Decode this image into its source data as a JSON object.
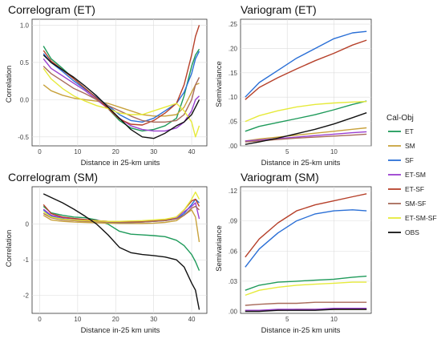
{
  "legend": {
    "title": "Cal-Obj",
    "items": [
      {
        "name": "ET",
        "color": "#1e9a5a"
      },
      {
        "name": "SM",
        "color": "#c8a23c"
      },
      {
        "name": "SF",
        "color": "#2a6fd6"
      },
      {
        "name": "ET-SM",
        "color": "#9a3fd0"
      },
      {
        "name": "ET-SF",
        "color": "#b6402a"
      },
      {
        "name": "SM-SF",
        "color": "#a86a5a"
      },
      {
        "name": "ET-SM-SF",
        "color": "#e6ea3a"
      },
      {
        "name": "OBS",
        "color": "#111111"
      }
    ]
  },
  "chart_data": [
    {
      "type": "line",
      "title": "Correlogram (ET)",
      "xlabel": "Distance in 25-km units",
      "ylabel": "Correlation",
      "xlim": [
        -2,
        44
      ],
      "ylim": [
        -0.62,
        1.08
      ],
      "xticks": [
        0,
        10,
        20,
        30,
        40
      ],
      "yticks": [
        1.0,
        0.5,
        0.0,
        -0.5
      ],
      "ytick_labels": [
        "1.0",
        "0.5",
        "0.0",
        "-0.5"
      ],
      "x": [
        1,
        3,
        6,
        9,
        12,
        15,
        18,
        21,
        24,
        27,
        30,
        33,
        36,
        38,
        40,
        41,
        42
      ],
      "series": [
        {
          "name": "ET",
          "values": [
            0.72,
            0.55,
            0.42,
            0.28,
            0.15,
            0.02,
            -0.12,
            -0.28,
            -0.38,
            -0.42,
            -0.4,
            -0.35,
            -0.25,
            0.05,
            0.45,
            0.6,
            0.68
          ]
        },
        {
          "name": "SM",
          "values": [
            0.2,
            0.12,
            0.06,
            0.02,
            0.0,
            -0.02,
            -0.05,
            -0.1,
            -0.15,
            -0.2,
            -0.22,
            -0.22,
            -0.2,
            -0.1,
            0.1,
            0.2,
            0.22
          ]
        },
        {
          "name": "SF",
          "values": [
            0.62,
            0.5,
            0.38,
            0.25,
            0.14,
            0.03,
            -0.08,
            -0.2,
            -0.28,
            -0.3,
            -0.25,
            -0.15,
            -0.05,
            0.1,
            0.35,
            0.55,
            0.65
          ]
        },
        {
          "name": "ET-SM",
          "values": [
            0.55,
            0.42,
            0.32,
            0.22,
            0.12,
            0.0,
            -0.12,
            -0.25,
            -0.35,
            -0.4,
            -0.42,
            -0.42,
            -0.38,
            -0.3,
            -0.15,
            0.0,
            0.05
          ]
        },
        {
          "name": "ET-SF",
          "values": [
            0.66,
            0.52,
            0.4,
            0.28,
            0.15,
            0.02,
            -0.12,
            -0.26,
            -0.33,
            -0.34,
            -0.28,
            -0.18,
            -0.05,
            0.2,
            0.6,
            0.85,
            1.0
          ]
        },
        {
          "name": "SM-SF",
          "values": [
            0.45,
            0.35,
            0.25,
            0.15,
            0.08,
            0.0,
            -0.08,
            -0.15,
            -0.22,
            -0.28,
            -0.3,
            -0.3,
            -0.28,
            -0.2,
            0.0,
            0.2,
            0.3
          ]
        },
        {
          "name": "ET-SM-SF",
          "values": [
            0.42,
            0.28,
            0.15,
            0.05,
            -0.02,
            -0.08,
            -0.12,
            -0.18,
            -0.2,
            -0.2,
            -0.15,
            -0.1,
            -0.05,
            -0.15,
            -0.3,
            -0.5,
            -0.35
          ]
        },
        {
          "name": "OBS",
          "values": [
            0.6,
            0.5,
            0.4,
            0.3,
            0.18,
            0.05,
            -0.1,
            -0.25,
            -0.4,
            -0.5,
            -0.52,
            -0.45,
            -0.35,
            -0.3,
            -0.2,
            -0.1,
            0.0
          ]
        }
      ]
    },
    {
      "type": "line",
      "title": "Variogram (ET)",
      "xlabel": "Distance in 25-km units",
      "ylabel": "Semivariance",
      "xlim": [
        0,
        14
      ],
      "ylim": [
        0,
        0.26
      ],
      "xticks": [
        5,
        10
      ],
      "yticks": [
        0.0,
        0.05,
        0.1,
        0.15,
        0.2,
        0.25
      ],
      "ytick_labels": [
        ".00",
        ".05",
        ".10",
        ".15",
        ".20",
        ".25"
      ],
      "x": [
        0.5,
        2,
        4,
        6,
        8,
        10,
        12,
        13.5
      ],
      "series": [
        {
          "name": "ET",
          "values": [
            0.03,
            0.04,
            0.048,
            0.056,
            0.064,
            0.074,
            0.085,
            0.092
          ]
        },
        {
          "name": "SM",
          "values": [
            0.01,
            0.014,
            0.018,
            0.022,
            0.026,
            0.03,
            0.034,
            0.037
          ]
        },
        {
          "name": "SF",
          "values": [
            0.1,
            0.13,
            0.155,
            0.18,
            0.2,
            0.22,
            0.232,
            0.235
          ]
        },
        {
          "name": "ET-SM",
          "values": [
            0.01,
            0.012,
            0.015,
            0.018,
            0.021,
            0.024,
            0.027,
            0.029
          ]
        },
        {
          "name": "ET-SF",
          "values": [
            0.095,
            0.12,
            0.14,
            0.158,
            0.175,
            0.19,
            0.207,
            0.217
          ]
        },
        {
          "name": "SM-SF",
          "values": [
            0.008,
            0.01,
            0.013,
            0.016,
            0.018,
            0.02,
            0.022,
            0.024
          ]
        },
        {
          "name": "ET-SM-SF",
          "values": [
            0.05,
            0.062,
            0.072,
            0.08,
            0.085,
            0.088,
            0.09,
            0.091
          ]
        },
        {
          "name": "OBS",
          "values": [
            0.003,
            0.008,
            0.016,
            0.025,
            0.034,
            0.045,
            0.058,
            0.068
          ]
        }
      ]
    },
    {
      "type": "line",
      "title": "Correlogram (SM)",
      "xlabel": "Distance in-25 km units",
      "ylabel": "Correlation",
      "xlim": [
        -2,
        44
      ],
      "ylim": [
        -2.5,
        1.05
      ],
      "xticks": [
        0,
        10,
        20,
        30,
        40
      ],
      "yticks": [
        0,
        -1,
        -2
      ],
      "ytick_labels": [
        "0",
        "-1",
        "-2"
      ],
      "x": [
        1,
        3,
        6,
        9,
        12,
        15,
        18,
        21,
        24,
        27,
        30,
        33,
        36,
        38,
        40,
        41,
        42
      ],
      "series": [
        {
          "name": "ET",
          "values": [
            0.5,
            0.32,
            0.25,
            0.2,
            0.18,
            0.12,
            0.0,
            -0.2,
            -0.28,
            -0.3,
            -0.32,
            -0.35,
            -0.45,
            -0.6,
            -0.85,
            -1.05,
            -1.3
          ]
        },
        {
          "name": "SM",
          "values": [
            0.25,
            0.12,
            0.08,
            0.06,
            0.05,
            0.04,
            0.03,
            0.02,
            0.02,
            0.02,
            0.03,
            0.05,
            0.1,
            0.25,
            0.4,
            0.2,
            -0.5
          ]
        },
        {
          "name": "SF",
          "values": [
            0.4,
            0.22,
            0.15,
            0.12,
            0.1,
            0.08,
            0.06,
            0.05,
            0.05,
            0.06,
            0.08,
            0.1,
            0.15,
            0.3,
            0.55,
            0.7,
            0.6
          ]
        },
        {
          "name": "ET-SM",
          "values": [
            0.42,
            0.25,
            0.18,
            0.15,
            0.12,
            0.1,
            0.08,
            0.07,
            0.07,
            0.08,
            0.1,
            0.12,
            0.18,
            0.35,
            0.5,
            0.6,
            0.15
          ]
        },
        {
          "name": "ET-SF",
          "values": [
            0.55,
            0.3,
            0.2,
            0.16,
            0.13,
            0.1,
            0.08,
            0.06,
            0.06,
            0.07,
            0.09,
            0.12,
            0.2,
            0.4,
            0.65,
            0.7,
            0.5
          ]
        },
        {
          "name": "SM-SF",
          "values": [
            0.3,
            0.18,
            0.12,
            0.1,
            0.08,
            0.07,
            0.06,
            0.05,
            0.05,
            0.06,
            0.08,
            0.1,
            0.15,
            0.25,
            0.45,
            0.5,
            0.4
          ]
        },
        {
          "name": "ET-SM-SF",
          "values": [
            0.35,
            0.2,
            0.14,
            0.12,
            0.1,
            0.09,
            0.08,
            0.08,
            0.09,
            0.1,
            0.12,
            0.14,
            0.2,
            0.4,
            0.7,
            0.9,
            0.7
          ]
        },
        {
          "name": "OBS",
          "values": [
            0.85,
            0.75,
            0.6,
            0.42,
            0.22,
            0.0,
            -0.3,
            -0.65,
            -0.8,
            -0.85,
            -0.88,
            -0.92,
            -1.0,
            -1.2,
            -1.65,
            -1.85,
            -2.4
          ]
        }
      ]
    },
    {
      "type": "line",
      "title": "Variogram (SM)",
      "xlabel": "Distance in-25 km units",
      "ylabel": "Semivariance",
      "xlim": [
        0,
        14
      ],
      "ylim": [
        -0.002,
        0.124
      ],
      "xticks": [
        5,
        10
      ],
      "yticks": [
        0.0,
        0.03,
        0.06,
        0.09,
        0.12
      ],
      "ytick_labels": [
        ".00",
        ".03",
        ".06",
        ".09",
        ".12"
      ],
      "x": [
        0.5,
        2,
        4,
        6,
        8,
        10,
        12,
        13.5
      ],
      "series": [
        {
          "name": "ET",
          "values": [
            0.021,
            0.026,
            0.029,
            0.03,
            0.031,
            0.032,
            0.034,
            0.035
          ]
        },
        {
          "name": "SM",
          "values": [
            0.001,
            0.001,
            0.001,
            0.002,
            0.002,
            0.002,
            0.002,
            0.002
          ]
        },
        {
          "name": "SF",
          "values": [
            0.044,
            0.062,
            0.078,
            0.09,
            0.097,
            0.1,
            0.101,
            0.1
          ]
        },
        {
          "name": "ET-SM",
          "values": [
            0.001,
            0.001,
            0.002,
            0.002,
            0.002,
            0.003,
            0.003,
            0.003
          ]
        },
        {
          "name": "ET-SF",
          "values": [
            0.054,
            0.072,
            0.088,
            0.1,
            0.106,
            0.11,
            0.114,
            0.117
          ]
        },
        {
          "name": "SM-SF",
          "values": [
            0.006,
            0.007,
            0.008,
            0.008,
            0.009,
            0.009,
            0.009,
            0.009
          ]
        },
        {
          "name": "ET-SM-SF",
          "values": [
            0.016,
            0.021,
            0.024,
            0.026,
            0.027,
            0.028,
            0.029,
            0.029
          ]
        },
        {
          "name": "OBS",
          "values": [
            0.0,
            0.0,
            0.001,
            0.001,
            0.001,
            0.002,
            0.002,
            0.002
          ]
        }
      ]
    }
  ]
}
